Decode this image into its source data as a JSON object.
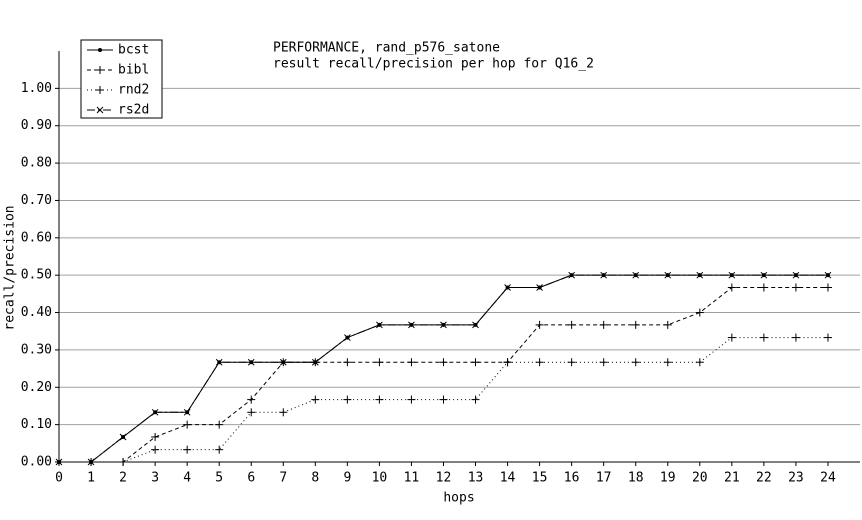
{
  "chart_data": {
    "type": "line",
    "title": "PERFORMANCE, rand_p576_satone",
    "subtitle": "result recall/precision per hop for Q16_2",
    "x_label": "hops",
    "y_label": "recall/precision",
    "x": [
      0,
      1,
      2,
      3,
      4,
      5,
      6,
      7,
      8,
      9,
      10,
      11,
      12,
      13,
      14,
      15,
      16,
      17,
      18,
      19,
      20,
      21,
      22,
      23,
      24
    ],
    "series": [
      {
        "name": "bcst",
        "color": "#000000",
        "values": [
          0,
          0,
          0.067,
          0.133,
          0.133,
          0.267,
          0.267,
          0.267,
          0.267,
          0.333,
          0.367,
          0.367,
          0.367,
          0.367,
          0.467,
          0.467,
          0.5,
          0.5,
          0.5,
          0.5,
          0.5,
          0.5,
          0.5,
          0.5,
          0.5
        ]
      },
      {
        "name": "bibl",
        "color": "#000000",
        "values": [
          0,
          0,
          0,
          0.067,
          0.1,
          0.1,
          0.167,
          0.267,
          0.267,
          0.267,
          0.267,
          0.267,
          0.267,
          0.267,
          0.267,
          0.367,
          0.367,
          0.367,
          0.367,
          0.367,
          0.4,
          0.467,
          0.467,
          0.467,
          0.467
        ]
      },
      {
        "name": "rnd2",
        "color": "#000000",
        "values": [
          0,
          0,
          0,
          0.033,
          0.033,
          0.033,
          0.133,
          0.133,
          0.167,
          0.167,
          0.167,
          0.167,
          0.167,
          0.167,
          0.267,
          0.267,
          0.267,
          0.267,
          0.267,
          0.267,
          0.267,
          0.333,
          0.333,
          0.333,
          0.333
        ]
      },
      {
        "name": "rs2d",
        "color": "#000000",
        "values": [
          0,
          0,
          0.067,
          0.133,
          0.133,
          0.267,
          0.267,
          0.267,
          0.267,
          0.333,
          0.367,
          0.367,
          0.367,
          0.367,
          0.467,
          0.467,
          0.5,
          0.5,
          0.5,
          0.5,
          0.5,
          0.5,
          0.5,
          0.5,
          0.5
        ]
      }
    ],
    "xlim": [
      0,
      25
    ],
    "xticks": [
      0,
      1,
      2,
      3,
      4,
      5,
      6,
      7,
      8,
      9,
      10,
      11,
      12,
      13,
      14,
      15,
      16,
      17,
      18,
      19,
      20,
      21,
      22,
      23,
      24
    ],
    "ylim": [
      0,
      1.1
    ],
    "yticks": [
      {
        "value": 0,
        "label": "0.00"
      },
      {
        "value": 0.1,
        "label": "0.10"
      },
      {
        "value": 0.2,
        "label": "0.20"
      },
      {
        "value": 0.3,
        "label": "0.30"
      },
      {
        "value": 0.4,
        "label": "0.40"
      },
      {
        "value": 0.5,
        "label": "0.50"
      },
      {
        "value": 0.6,
        "label": "0.60"
      },
      {
        "value": 0.7,
        "label": "0.70"
      },
      {
        "value": 0.8,
        "label": "0.80"
      },
      {
        "value": 0.9,
        "label": "0.90"
      },
      {
        "value": 1,
        "label": "1.00"
      }
    ],
    "grid": true,
    "legend": "upper left"
  }
}
